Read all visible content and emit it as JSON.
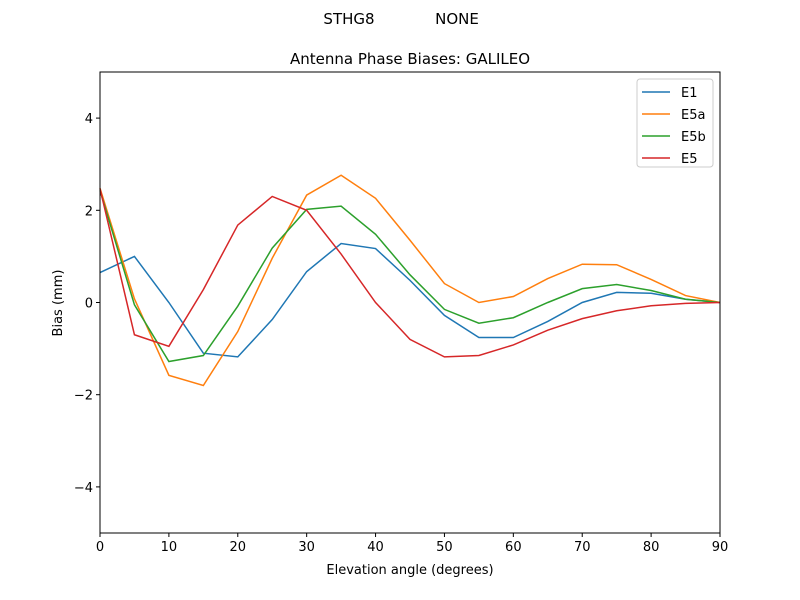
{
  "suptitle": {
    "left": "STHG8",
    "right": "NONE"
  },
  "chart_data": {
    "type": "line",
    "title": "Antenna Phase Biases: GALILEO",
    "xlabel": "Elevation angle (degrees)",
    "ylabel": "Bias (mm)",
    "xlim": [
      0,
      90
    ],
    "ylim": [
      -5,
      5
    ],
    "xticks": [
      0,
      10,
      20,
      30,
      40,
      50,
      60,
      70,
      80,
      90
    ],
    "yticks": [
      -4,
      -2,
      0,
      2,
      4
    ],
    "xtick_labels": [
      "0",
      "10",
      "20",
      "30",
      "40",
      "50",
      "60",
      "70",
      "80",
      "90"
    ],
    "ytick_labels": [
      "−4",
      "−2",
      "0",
      "2",
      "4"
    ],
    "grid": false,
    "legend_position": "top-right",
    "x": [
      0,
      5,
      10,
      15,
      20,
      25,
      30,
      35,
      40,
      45,
      50,
      55,
      60,
      65,
      70,
      75,
      80,
      85,
      90
    ],
    "series": [
      {
        "name": "E1",
        "color": "#1f77b4",
        "values": [
          0.65,
          1.0,
          0.0,
          -1.1,
          -1.18,
          -0.37,
          0.67,
          1.28,
          1.17,
          0.48,
          -0.28,
          -0.76,
          -0.76,
          -0.41,
          0.0,
          0.22,
          0.2,
          0.07,
          0.0
        ]
      },
      {
        "name": "E5a",
        "color": "#ff7f0e",
        "values": [
          2.48,
          0.08,
          -1.58,
          -1.8,
          -0.63,
          0.96,
          2.33,
          2.76,
          2.26,
          1.35,
          0.41,
          0.0,
          0.13,
          0.52,
          0.83,
          0.82,
          0.5,
          0.15,
          0.0
        ]
      },
      {
        "name": "E5b",
        "color": "#2ca02c",
        "values": [
          2.43,
          -0.05,
          -1.28,
          -1.15,
          -0.08,
          1.18,
          2.02,
          2.09,
          1.48,
          0.6,
          -0.15,
          -0.45,
          -0.33,
          0.0,
          0.3,
          0.39,
          0.26,
          0.07,
          0.0
        ]
      },
      {
        "name": "E5",
        "color": "#d62728",
        "values": [
          2.47,
          -0.7,
          -0.95,
          0.28,
          1.68,
          2.3,
          2.0,
          1.05,
          0.0,
          -0.8,
          -1.18,
          -1.15,
          -0.92,
          -0.6,
          -0.35,
          -0.18,
          -0.07,
          -0.02,
          0.0
        ]
      }
    ]
  }
}
